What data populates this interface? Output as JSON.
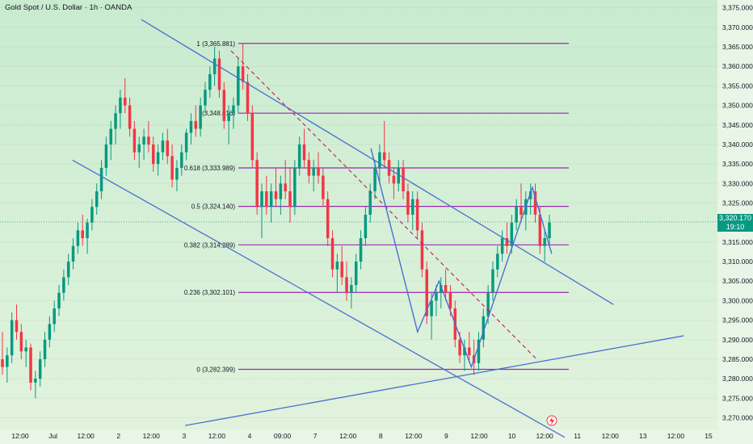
{
  "header": {
    "title": "Gold Spot / U.S. Dollar · 1h · OANDA"
  },
  "colors": {
    "bull": "#089981",
    "bear": "#f23645",
    "trend": "#4a6fd1",
    "fib": "#9c27b0",
    "projection": "#c2185b",
    "current_price_bg": "#089981"
  },
  "current_price": {
    "value": "3,320.170",
    "countdown": "19:10"
  },
  "event_icon": "lightning-icon",
  "chart_data": {
    "type": "candlestick",
    "y_axis": {
      "ticks": [
        "3,375.000",
        "3,370.000",
        "3,365.000",
        "3,360.000",
        "3,355.000",
        "3,350.000",
        "3,345.000",
        "3,340.000",
        "3,335.000",
        "3,330.000",
        "3,325.000",
        "3,315.000",
        "3,310.000",
        "3,305.000",
        "3,300.000",
        "3,295.000",
        "3,290.000",
        "3,285.000",
        "3,280.000",
        "3,275.000",
        "3,270.000"
      ],
      "range": [
        3267,
        3377
      ]
    },
    "x_axis": {
      "ticks": [
        "12:00",
        "Jul",
        "12:00",
        "2",
        "12:00",
        "3",
        "12:00",
        "4",
        "09:00",
        "7",
        "12:00",
        "8",
        "12:00",
        "9",
        "12:00",
        "10",
        "12:00",
        "11",
        "12:00",
        "13",
        "12:00",
        "15"
      ]
    },
    "fib_levels": [
      {
        "ratio": "1",
        "label": "1 (3,365.881)",
        "price": 3365.881
      },
      {
        "ratio": "0.786",
        "label": "(3,348.016)",
        "price": 3348.016
      },
      {
        "ratio": "0.618",
        "label": "0.618 (3,333.989)",
        "price": 3333.989
      },
      {
        "ratio": "0.5",
        "label": "0.5 (3,324.140)",
        "price": 3324.14
      },
      {
        "ratio": "0.382",
        "label": "0.382 (3,314.289)",
        "price": 3314.289
      },
      {
        "ratio": "0.236",
        "label": "0.236 (3,302.101)",
        "price": 3302.101
      },
      {
        "ratio": "0",
        "label": "0 (3,282.399)",
        "price": 3282.399
      }
    ],
    "candles_ohlc": [
      [
        3285,
        3292,
        3281,
        3283
      ],
      [
        3283,
        3288,
        3279,
        3286
      ],
      [
        3286,
        3297,
        3284,
        3295
      ],
      [
        3295,
        3299,
        3290,
        3292
      ],
      [
        3292,
        3294,
        3285,
        3287
      ],
      [
        3287,
        3290,
        3283,
        3288
      ],
      [
        3288,
        3289,
        3277,
        3279
      ],
      [
        3279,
        3282,
        3275,
        3280
      ],
      [
        3280,
        3287,
        3278,
        3285
      ],
      [
        3285,
        3292,
        3283,
        3290
      ],
      [
        3290,
        3296,
        3288,
        3294
      ],
      [
        3294,
        3300,
        3292,
        3298
      ],
      [
        3298,
        3304,
        3296,
        3302
      ],
      [
        3302,
        3308,
        3300,
        3306
      ],
      [
        3306,
        3312,
        3304,
        3310
      ],
      [
        3310,
        3316,
        3308,
        3314
      ],
      [
        3314,
        3320,
        3312,
        3318
      ],
      [
        3318,
        3322,
        3314,
        3316
      ],
      [
        3316,
        3321,
        3312,
        3320
      ],
      [
        3320,
        3326,
        3318,
        3324
      ],
      [
        3324,
        3330,
        3322,
        3328
      ],
      [
        3328,
        3336,
        3326,
        3334
      ],
      [
        3334,
        3342,
        3332,
        3340
      ],
      [
        3340,
        3346,
        3336,
        3344
      ],
      [
        3344,
        3350,
        3340,
        3348
      ],
      [
        3348,
        3354,
        3344,
        3352
      ],
      [
        3352,
        3357,
        3348,
        3350
      ],
      [
        3350,
        3352,
        3342,
        3344
      ],
      [
        3344,
        3346,
        3336,
        3338
      ],
      [
        3338,
        3342,
        3334,
        3340
      ],
      [
        3340,
        3344,
        3336,
        3342
      ],
      [
        3342,
        3346,
        3338,
        3340
      ],
      [
        3340,
        3342,
        3333,
        3335
      ],
      [
        3335,
        3340,
        3332,
        3338
      ],
      [
        3338,
        3343,
        3336,
        3341
      ],
      [
        3341,
        3344,
        3335,
        3337
      ],
      [
        3337,
        3340,
        3329,
        3331
      ],
      [
        3331,
        3336,
        3328,
        3334
      ],
      [
        3334,
        3340,
        3332,
        3338
      ],
      [
        3338,
        3344,
        3336,
        3343
      ],
      [
        3343,
        3348,
        3340,
        3346
      ],
      [
        3346,
        3350,
        3342,
        3344
      ],
      [
        3344,
        3352,
        3342,
        3350
      ],
      [
        3350,
        3356,
        3348,
        3354
      ],
      [
        3354,
        3360,
        3352,
        3358
      ],
      [
        3358,
        3365,
        3355,
        3362
      ],
      [
        3362,
        3364,
        3352,
        3354
      ],
      [
        3354,
        3356,
        3344,
        3346
      ],
      [
        3346,
        3350,
        3340,
        3348
      ],
      [
        3348,
        3352,
        3344,
        3350
      ],
      [
        3350,
        3362,
        3348,
        3360
      ],
      [
        3360,
        3366,
        3354,
        3356
      ],
      [
        3356,
        3358,
        3346,
        3348
      ],
      [
        3348,
        3350,
        3334,
        3336
      ],
      [
        3336,
        3338,
        3322,
        3324
      ],
      [
        3324,
        3330,
        3316,
        3328
      ],
      [
        3328,
        3332,
        3322,
        3324
      ],
      [
        3324,
        3330,
        3320,
        3328
      ],
      [
        3328,
        3334,
        3324,
        3326
      ],
      [
        3326,
        3332,
        3322,
        3330
      ],
      [
        3330,
        3336,
        3326,
        3328
      ],
      [
        3328,
        3334,
        3320,
        3324
      ],
      [
        3324,
        3336,
        3322,
        3334
      ],
      [
        3334,
        3342,
        3332,
        3340
      ],
      [
        3340,
        3344,
        3334,
        3336
      ],
      [
        3336,
        3338,
        3330,
        3332
      ],
      [
        3332,
        3336,
        3328,
        3334
      ],
      [
        3334,
        3338,
        3330,
        3332
      ],
      [
        3332,
        3334,
        3324,
        3326
      ],
      [
        3326,
        3328,
        3314,
        3316
      ],
      [
        3316,
        3318,
        3306,
        3308
      ],
      [
        3308,
        3312,
        3302,
        3310
      ],
      [
        3310,
        3314,
        3304,
        3306
      ],
      [
        3306,
        3310,
        3300,
        3302
      ],
      [
        3302,
        3306,
        3298,
        3304
      ],
      [
        3304,
        3312,
        3302,
        3310
      ],
      [
        3310,
        3318,
        3308,
        3316
      ],
      [
        3316,
        3324,
        3314,
        3322
      ],
      [
        3322,
        3330,
        3320,
        3328
      ],
      [
        3328,
        3336,
        3326,
        3334
      ],
      [
        3334,
        3340,
        3330,
        3338
      ],
      [
        3338,
        3346,
        3334,
        3336
      ],
      [
        3336,
        3338,
        3330,
        3332
      ],
      [
        3332,
        3334,
        3326,
        3330
      ],
      [
        3330,
        3336,
        3328,
        3334
      ],
      [
        3334,
        3336,
        3326,
        3328
      ],
      [
        3328,
        3330,
        3320,
        3322
      ],
      [
        3322,
        3328,
        3318,
        3326
      ],
      [
        3326,
        3328,
        3316,
        3318
      ],
      [
        3318,
        3320,
        3306,
        3308
      ],
      [
        3308,
        3310,
        3294,
        3296
      ],
      [
        3296,
        3302,
        3290,
        3300
      ],
      [
        3300,
        3304,
        3296,
        3302
      ],
      [
        3302,
        3306,
        3298,
        3304
      ],
      [
        3304,
        3308,
        3300,
        3302
      ],
      [
        3302,
        3304,
        3296,
        3298
      ],
      [
        3298,
        3300,
        3288,
        3290
      ],
      [
        3290,
        3292,
        3284,
        3286
      ],
      [
        3286,
        3290,
        3282,
        3288
      ],
      [
        3288,
        3292,
        3284,
        3286
      ],
      [
        3286,
        3290,
        3281,
        3284
      ],
      [
        3284,
        3292,
        3282,
        3290
      ],
      [
        3290,
        3298,
        3288,
        3296
      ],
      [
        3296,
        3304,
        3294,
        3302
      ],
      [
        3302,
        3310,
        3300,
        3308
      ],
      [
        3308,
        3314,
        3306,
        3312
      ],
      [
        3312,
        3318,
        3310,
        3316
      ],
      [
        3316,
        3320,
        3312,
        3314
      ],
      [
        3314,
        3322,
        3312,
        3320
      ],
      [
        3320,
        3326,
        3318,
        3324
      ],
      [
        3324,
        3330,
        3320,
        3322
      ],
      [
        3322,
        3328,
        3318,
        3326
      ],
      [
        3326,
        3330,
        3322,
        3328
      ],
      [
        3328,
        3330,
        3320,
        3322
      ],
      [
        3322,
        3324,
        3312,
        3314
      ],
      [
        3314,
        3318,
        3310,
        3316
      ],
      [
        3316,
        3322,
        3314,
        3320
      ]
    ],
    "trendlines": [
      {
        "from": [
          3372,
          0.197
        ],
        "to": [
          3299,
          0.855
        ]
      },
      {
        "from": [
          3336,
          0.101
        ],
        "to": [
          3265,
          0.787
        ]
      },
      {
        "from": [
          3268,
          0.258
        ],
        "to": [
          3291,
          0.953
        ]
      }
    ],
    "projection_line": {
      "from": [
        3364,
        0.322
      ],
      "to": [
        3285,
        0.748
      ]
    },
    "grid": true,
    "legend": "none"
  }
}
